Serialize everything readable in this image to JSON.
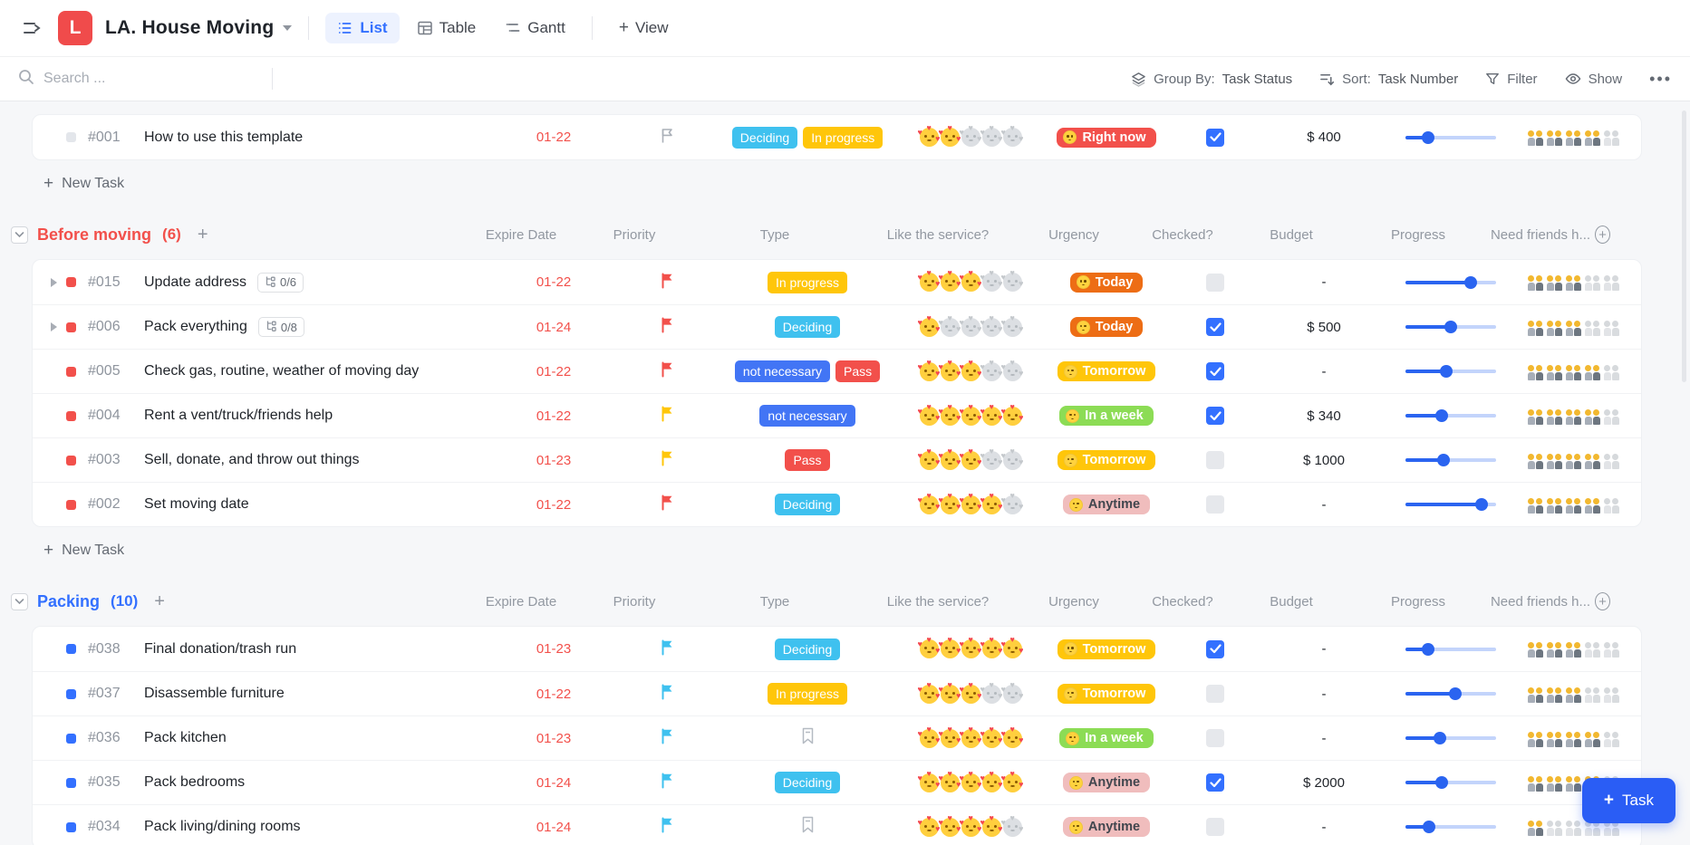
{
  "header": {
    "workspace_initial": "L",
    "title": "LA. House Moving",
    "tabs": [
      {
        "label": "List",
        "icon": "list-icon",
        "active": true
      },
      {
        "label": "Table",
        "icon": "table-icon",
        "active": false
      },
      {
        "label": "Gantt",
        "icon": "gantt-icon",
        "active": false
      }
    ],
    "add_view_label": "View"
  },
  "toolbar": {
    "search_placeholder": "Search ...",
    "group_by_label": "Group By:",
    "group_by_value": "Task Status",
    "sort_label": "Sort:",
    "sort_value": "Task Number",
    "filter_label": "Filter",
    "show_label": "Show",
    "more_label": "..."
  },
  "columns": [
    "Expire Date",
    "Priority",
    "Type",
    "Like the service?",
    "Urgency",
    "Checked?",
    "Budget",
    "Progress",
    "Need friends h..."
  ],
  "labels": {
    "new_task": "New Task",
    "task_button": "Task"
  },
  "colors": {
    "accent_red": "#f2504b",
    "accent_blue": "#3370ff",
    "tag_cyan": "#3fc1ef",
    "tag_yellow": "#ffc60a",
    "tag_blue": "#4275f5",
    "tag_red": "#f2504b",
    "urgency_right_now": "#f2504b",
    "urgency_today": "#ed6d15",
    "urgency_tomorrow": "#ffc60a",
    "urgency_in_a_week": "#8cdc55",
    "urgency_anytime": "#f0bdbd",
    "like_emoji": "smiling-face-with-hearts",
    "friends_emoji": "two-men-holding-hands"
  },
  "groups": [
    {
      "title": null,
      "count": null,
      "color": null,
      "show_columns": false,
      "show_new_task": true,
      "rows": [
        {
          "number": "#001",
          "title": "How to use this template",
          "bullet": "#e3e6eb",
          "expand": false,
          "subtasks": null,
          "date": "01-22",
          "priority": {
            "style": "outline",
            "color": "#aab0b8"
          },
          "type_tags": [
            {
              "label": "Deciding",
              "bg": "#3fc1ef"
            },
            {
              "label": "In progress",
              "bg": "#ffc60a"
            }
          ],
          "like": 2,
          "urgency": {
            "label": "Right now",
            "bg": "#f2504b",
            "fg": "#ffffff",
            "emoji": "face-screaming-in-fear"
          },
          "checked": true,
          "budget": "$ 400",
          "progress": 25,
          "friends": 4
        }
      ]
    },
    {
      "title": "Before moving",
      "count": "(6)",
      "color": "#f2504b",
      "show_columns": true,
      "show_new_task": true,
      "rows": [
        {
          "number": "#015",
          "title": "Update address",
          "bullet": "#f2504b",
          "expand": true,
          "subtasks": "0/6",
          "date": "01-22",
          "priority": {
            "style": "fill",
            "color": "#f2504b"
          },
          "type_tags": [
            {
              "label": "In progress",
              "bg": "#ffc60a"
            }
          ],
          "like": 3,
          "urgency": {
            "label": "Today",
            "bg": "#ed6d15",
            "fg": "#ffffff",
            "emoji": "grinning-squinting-face"
          },
          "checked": false,
          "budget": "-",
          "progress": 72,
          "friends": 3
        },
        {
          "number": "#006",
          "title": "Pack everything",
          "bullet": "#f2504b",
          "expand": true,
          "subtasks": "0/8",
          "date": "01-24",
          "priority": {
            "style": "fill",
            "color": "#f2504b"
          },
          "type_tags": [
            {
              "label": "Deciding",
              "bg": "#3fc1ef"
            }
          ],
          "like": 1,
          "urgency": {
            "label": "Today",
            "bg": "#ed6d15",
            "fg": "#ffffff",
            "emoji": "grinning-squinting-face"
          },
          "checked": true,
          "budget": "$ 500",
          "progress": 50,
          "friends": 3
        },
        {
          "number": "#005",
          "title": "Check gas, routine, weather of moving day",
          "bullet": "#f2504b",
          "expand": false,
          "subtasks": null,
          "date": "01-22",
          "priority": {
            "style": "fill",
            "color": "#f2504b"
          },
          "type_tags": [
            {
              "label": "not necessary",
              "bg": "#4275f5"
            },
            {
              "label": "Pass",
              "bg": "#f2504b"
            }
          ],
          "like": 3,
          "urgency": {
            "label": "Tomorrow",
            "bg": "#ffc60a",
            "fg": "#ffffff",
            "emoji": "face-savoring-food"
          },
          "checked": true,
          "budget": "-",
          "progress": 45,
          "friends": 4
        },
        {
          "number": "#004",
          "title": "Rent a vent/truck/friends help",
          "bullet": "#f2504b",
          "expand": false,
          "subtasks": null,
          "date": "01-22",
          "priority": {
            "style": "fill",
            "color": "#ffc60a"
          },
          "type_tags": [
            {
              "label": "not necessary",
              "bg": "#4275f5"
            }
          ],
          "like": 5,
          "urgency": {
            "label": "In a week",
            "bg": "#8cdc55",
            "fg": "#ffffff",
            "emoji": "face-with-hand-over-mouth"
          },
          "checked": true,
          "budget": "$ 340",
          "progress": 40,
          "friends": 4
        },
        {
          "number": "#003",
          "title": "Sell, donate, and throw out things",
          "bullet": "#f2504b",
          "expand": false,
          "subtasks": null,
          "date": "01-23",
          "priority": {
            "style": "fill",
            "color": "#ffc60a"
          },
          "type_tags": [
            {
              "label": "Pass",
              "bg": "#f2504b"
            }
          ],
          "like": 3,
          "urgency": {
            "label": "Tomorrow",
            "bg": "#ffc60a",
            "fg": "#ffffff",
            "emoji": "face-savoring-food"
          },
          "checked": false,
          "budget": "$ 1000",
          "progress": 42,
          "friends": 4
        },
        {
          "number": "#002",
          "title": "Set moving date",
          "bullet": "#f2504b",
          "expand": false,
          "subtasks": null,
          "date": "01-22",
          "priority": {
            "style": "fill",
            "color": "#f2504b"
          },
          "type_tags": [
            {
              "label": "Deciding",
              "bg": "#3fc1ef"
            }
          ],
          "like": 4,
          "urgency": {
            "label": "Anytime",
            "bg": "#f0bdbd",
            "fg": "#41464e",
            "emoji": "partying-face"
          },
          "checked": false,
          "budget": "-",
          "progress": 84,
          "friends": 4
        }
      ]
    },
    {
      "title": "Packing",
      "count": "(10)",
      "color": "#3370ff",
      "show_columns": true,
      "show_new_task": false,
      "rows": [
        {
          "number": "#038",
          "title": "Final donation/trash run",
          "bullet": "#3370ff",
          "expand": false,
          "subtasks": null,
          "date": "01-23",
          "priority": {
            "style": "fill",
            "color": "#3fc1ef"
          },
          "type_tags": [
            {
              "label": "Deciding",
              "bg": "#3fc1ef"
            }
          ],
          "like": 5,
          "urgency": {
            "label": "Tomorrow",
            "bg": "#ffc60a",
            "fg": "#ffffff",
            "emoji": "face-savoring-food"
          },
          "checked": true,
          "budget": "-",
          "progress": 25,
          "friends": 3
        },
        {
          "number": "#037",
          "title": "Disassemble furniture",
          "bullet": "#3370ff",
          "expand": false,
          "subtasks": null,
          "date": "01-22",
          "priority": {
            "style": "fill",
            "color": "#3fc1ef"
          },
          "type_tags": [
            {
              "label": "In progress",
              "bg": "#ffc60a"
            }
          ],
          "like": 3,
          "urgency": {
            "label": "Tomorrow",
            "bg": "#ffc60a",
            "fg": "#ffffff",
            "emoji": "face-savoring-food"
          },
          "checked": false,
          "budget": "-",
          "progress": 55,
          "friends": 3
        },
        {
          "number": "#036",
          "title": "Pack kitchen",
          "bullet": "#3370ff",
          "expand": false,
          "subtasks": null,
          "date": "01-23",
          "priority": {
            "style": "fill",
            "color": "#3fc1ef"
          },
          "type_tags": "bookmark",
          "like": 5,
          "urgency": {
            "label": "In a week",
            "bg": "#8cdc55",
            "fg": "#ffffff",
            "emoji": "face-with-hand-over-mouth"
          },
          "checked": false,
          "budget": "-",
          "progress": 38,
          "friends": 4
        },
        {
          "number": "#035",
          "title": "Pack bedrooms",
          "bullet": "#3370ff",
          "expand": false,
          "subtasks": null,
          "date": "01-24",
          "priority": {
            "style": "fill",
            "color": "#3fc1ef"
          },
          "type_tags": [
            {
              "label": "Deciding",
              "bg": "#3fc1ef"
            }
          ],
          "like": 5,
          "urgency": {
            "label": "Anytime",
            "bg": "#f0bdbd",
            "fg": "#41464e",
            "emoji": "partying-face"
          },
          "checked": true,
          "budget": "$ 2000",
          "progress": 40,
          "friends": 4
        },
        {
          "number": "#034",
          "title": "Pack living/dining rooms",
          "bullet": "#3370ff",
          "expand": false,
          "subtasks": null,
          "date": "01-24",
          "priority": {
            "style": "fill",
            "color": "#3fc1ef"
          },
          "type_tags": "bookmark",
          "like": 4,
          "urgency": {
            "label": "Anytime",
            "bg": "#f0bdbd",
            "fg": "#41464e",
            "emoji": "partying-face"
          },
          "checked": false,
          "budget": "-",
          "progress": 26,
          "friends": 1
        }
      ]
    }
  ]
}
